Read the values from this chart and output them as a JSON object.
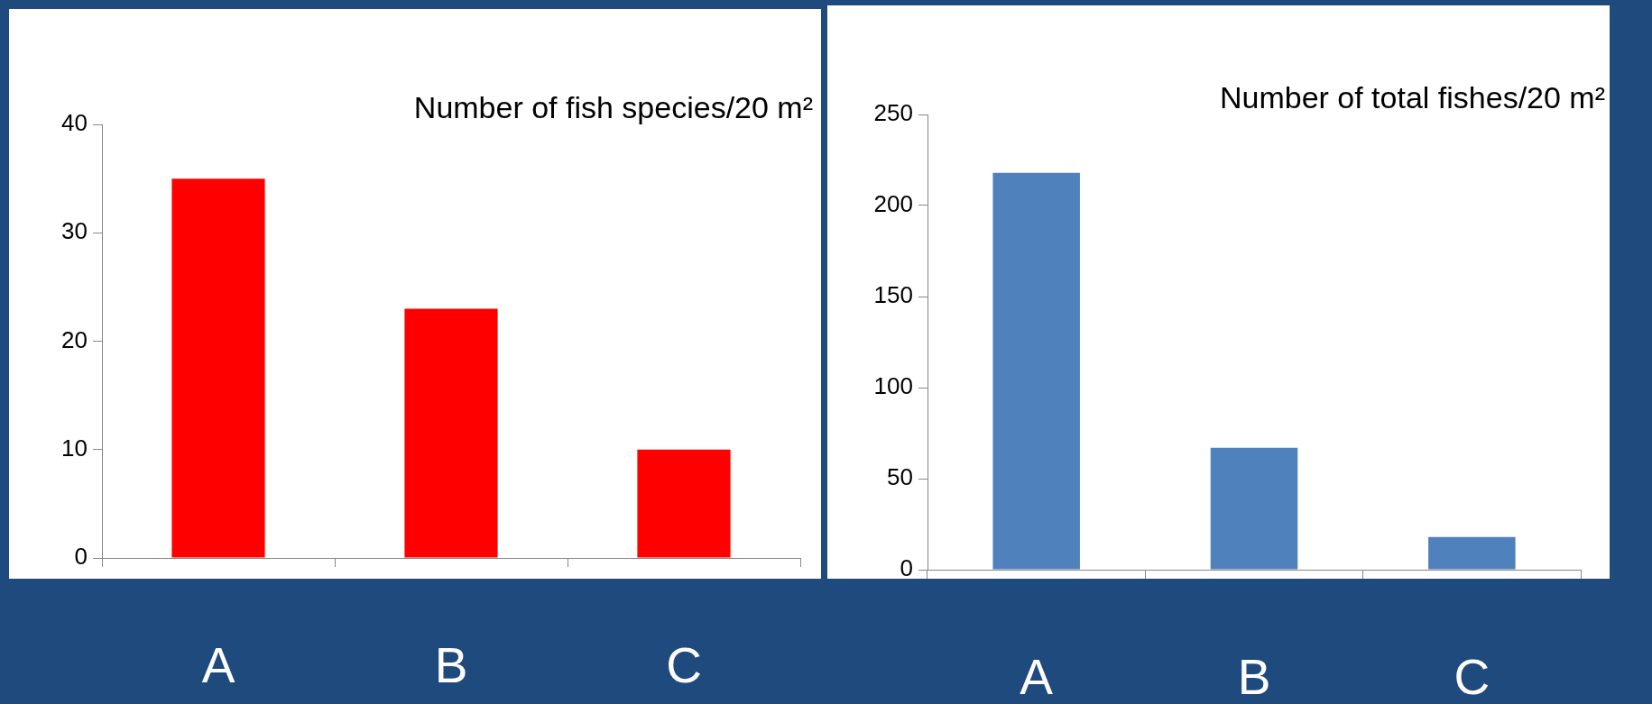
{
  "chart_data": [
    {
      "type": "bar",
      "title": "Number of fish species/20 m²",
      "categories": [
        "A",
        "B",
        "C"
      ],
      "values": [
        35,
        23,
        10
      ],
      "color": "#ff0000",
      "ylim": [
        0,
        40
      ],
      "yticks": [
        0,
        10,
        20,
        30,
        40
      ],
      "grid": false,
      "legend": false
    },
    {
      "type": "bar",
      "title": "Number of total fishes/20 m²",
      "categories": [
        "A",
        "B",
        "C"
      ],
      "values": [
        218,
        67,
        18
      ],
      "color": "#4f81bd",
      "ylim": [
        0,
        250
      ],
      "yticks": [
        0,
        50,
        100,
        150,
        200,
        250
      ],
      "grid": false,
      "legend": false
    }
  ]
}
